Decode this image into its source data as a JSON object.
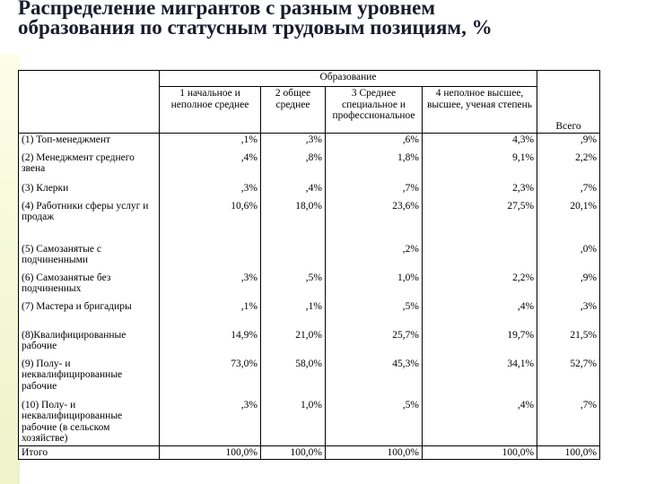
{
  "title": [
    "Распределение мигрантов с разным уровнем",
    "образования по статусным трудовым позициям, %"
  ],
  "table": {
    "group_header": "Образование",
    "columns": [
      "1 начальное и неполное среднее",
      "2 общее среднее",
      "3 Среднее специальное и профессиональное",
      "4 неполное высшее, высшее, ученая степень",
      "Всего"
    ],
    "rows": [
      [
        "(1) Топ-менеджмент",
        ",1%",
        ",3%",
        ",6%",
        "4,3%",
        ",9%"
      ],
      [
        "(2) Менеджмент среднего звена",
        ",4%",
        ",8%",
        "1,8%",
        "9,1%",
        "2,2%"
      ],
      [
        "(3) Клерки",
        ",3%",
        ",4%",
        ",7%",
        "2,3%",
        ",7%"
      ],
      [
        "(4) Работники сферы услуг и продаж",
        "10,6%",
        "18,0%",
        "23,6%",
        "27,5%",
        "20,1%"
      ],
      [
        "(5) Самозанятые с подчиненными",
        null,
        null,
        ",2%",
        null,
        ",0%"
      ],
      [
        "(6) Самозанятые без подчиненных",
        ",3%",
        ",5%",
        "1,0%",
        "2,2%",
        ",9%"
      ],
      [
        "(7) Мастера и бригадиры",
        ",1%",
        ",1%",
        ",5%",
        ",4%",
        ",3%"
      ],
      [
        "(8)Квалифицированные рабочие",
        "14,9%",
        "21,0%",
        "25,7%",
        "19,7%",
        "21,5%"
      ],
      [
        "(9) Полу- и неквалифицированные рабочие",
        "73,0%",
        "58,0%",
        "45,3%",
        "34,1%",
        "52,7%"
      ],
      [
        "(10) Полу- и неквалифицированные рабочие (в сельском хозяйстве)",
        ",3%",
        "1,0%",
        ",5%",
        ",4%",
        ",7%"
      ],
      [
        "Итого",
        "100,0%",
        "100,0%",
        "100,0%",
        "100,0%",
        "100,0%"
      ]
    ]
  }
}
